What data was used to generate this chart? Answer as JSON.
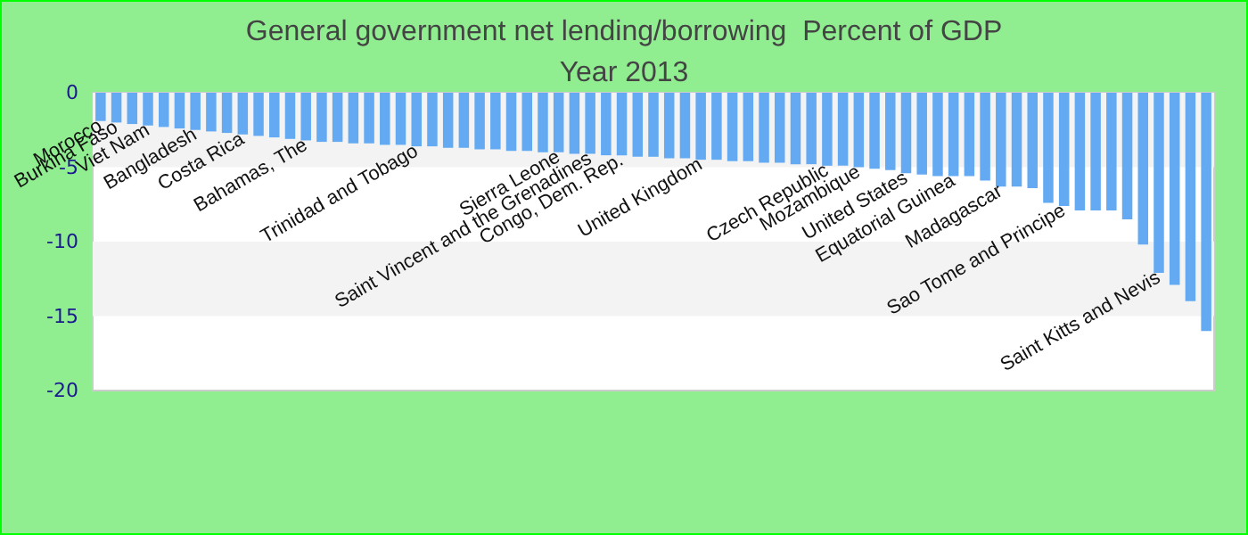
{
  "chart_data": {
    "type": "bar",
    "title": "General government net lending/borrowing  Percent of GDP",
    "subtitle": "Year 2013",
    "categories": [
      "Morocco",
      "Burkina Faso",
      null,
      "Viet Nam",
      null,
      null,
      "Bangladesh",
      null,
      null,
      "Costa Rica",
      null,
      null,
      null,
      "Bahamas, The",
      null,
      null,
      null,
      null,
      null,
      null,
      "Trinidad and Tobago",
      null,
      null,
      null,
      null,
      null,
      null,
      null,
      null,
      "Sierra Leone",
      null,
      "Saint Vincent and the Grenadines",
      null,
      "Congo, Dem. Rep.",
      null,
      null,
      null,
      null,
      "United Kingdom",
      null,
      null,
      null,
      null,
      null,
      null,
      null,
      "Czech Republic",
      null,
      "Mozambique",
      null,
      null,
      "United States",
      null,
      null,
      "Equatorial Guinea",
      null,
      null,
      "Madagascar",
      null,
      null,
      null,
      "Sao Tome and Principe",
      null,
      null,
      null,
      null,
      null,
      "Saint Kitts and Nevis",
      null,
      null,
      null
    ],
    "values": [
      -1.9,
      -2.0,
      -2.1,
      -2.2,
      -2.3,
      -2.4,
      -2.5,
      -2.6,
      -2.7,
      -2.8,
      -2.9,
      -3.0,
      -3.1,
      -3.2,
      -3.3,
      -3.3,
      -3.4,
      -3.4,
      -3.5,
      -3.5,
      -3.6,
      -3.6,
      -3.7,
      -3.7,
      -3.8,
      -3.8,
      -3.9,
      -3.9,
      -4.0,
      -4.0,
      -4.1,
      -4.1,
      -4.2,
      -4.2,
      -4.3,
      -4.3,
      -4.4,
      -4.4,
      -4.5,
      -4.5,
      -4.6,
      -4.6,
      -4.7,
      -4.7,
      -4.8,
      -4.8,
      -4.9,
      -4.9,
      -5.0,
      -5.1,
      -5.2,
      -5.4,
      -5.5,
      -5.6,
      -5.6,
      -5.6,
      -5.9,
      -6.3,
      -6.3,
      -6.4,
      -7.4,
      -7.6,
      -7.9,
      -7.9,
      -7.9,
      -8.5,
      -10.2,
      -12.1,
      -12.9,
      -14.0,
      -16.0
    ],
    "color": "#64aaf2",
    "ylim": [
      -20,
      0
    ],
    "yticks": [
      0,
      -5,
      -10,
      -15,
      -20
    ],
    "bands": [
      {
        "axis": "y",
        "from": -5,
        "to": 0,
        "color": "#f3f3f3"
      },
      {
        "axis": "y",
        "from": -15,
        "to": -10,
        "color": "#f3f3f3"
      }
    ],
    "tick_labels": "y"
  }
}
